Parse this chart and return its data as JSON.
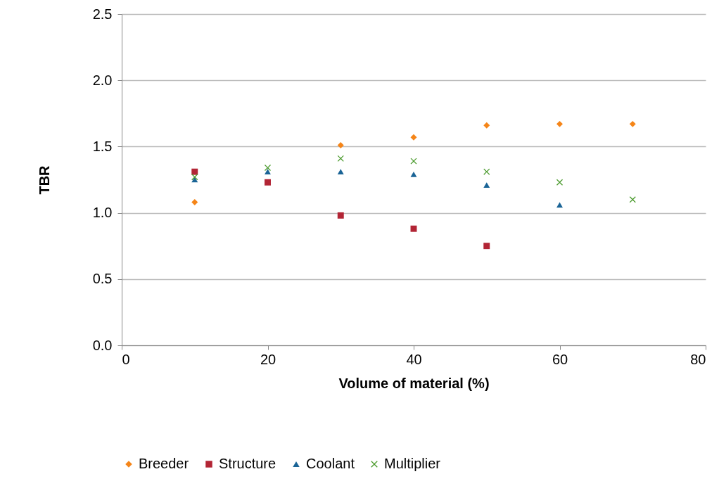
{
  "chart_data": {
    "type": "scatter",
    "xlabel": "Volume of material (%)",
    "ylabel": "TBR",
    "xlim": [
      0,
      80
    ],
    "xticks": [
      0,
      20,
      40,
      60,
      80
    ],
    "ylim": [
      0,
      2.5
    ],
    "yticks": [
      {
        "value": 0,
        "label": "0.0"
      },
      {
        "value": 0.5,
        "label": "0.5"
      },
      {
        "value": 1,
        "label": "1.0"
      },
      {
        "value": 1.5,
        "label": "1.5"
      },
      {
        "value": 2,
        "label": "2.0"
      },
      {
        "value": 2.5,
        "label": "2.5"
      }
    ],
    "grid": "y",
    "legend": "bottom",
    "series": [
      {
        "name": "Breeder",
        "color": "#f58518",
        "marker": "diamond",
        "x": [
          10,
          30,
          40,
          50,
          60,
          70
        ],
        "values": [
          1.08,
          1.51,
          1.57,
          1.66,
          1.67,
          1.67
        ]
      },
      {
        "name": "Structure",
        "color": "#b22535",
        "marker": "square",
        "x": [
          10,
          20,
          30,
          40,
          50
        ],
        "values": [
          1.31,
          1.23,
          0.98,
          0.88,
          0.75
        ]
      },
      {
        "name": "Coolant",
        "color": "#1a6496",
        "marker": "triangle",
        "x": [
          10,
          20,
          30,
          40,
          50,
          60
        ],
        "values": [
          1.25,
          1.31,
          1.31,
          1.29,
          1.21,
          1.06
        ]
      },
      {
        "name": "Multiplier",
        "color": "#4a9a2c",
        "marker": "cross",
        "x": [
          10,
          20,
          30,
          40,
          50,
          60,
          70
        ],
        "values": [
          1.27,
          1.34,
          1.41,
          1.39,
          1.31,
          1.23,
          1.1
        ]
      }
    ]
  }
}
